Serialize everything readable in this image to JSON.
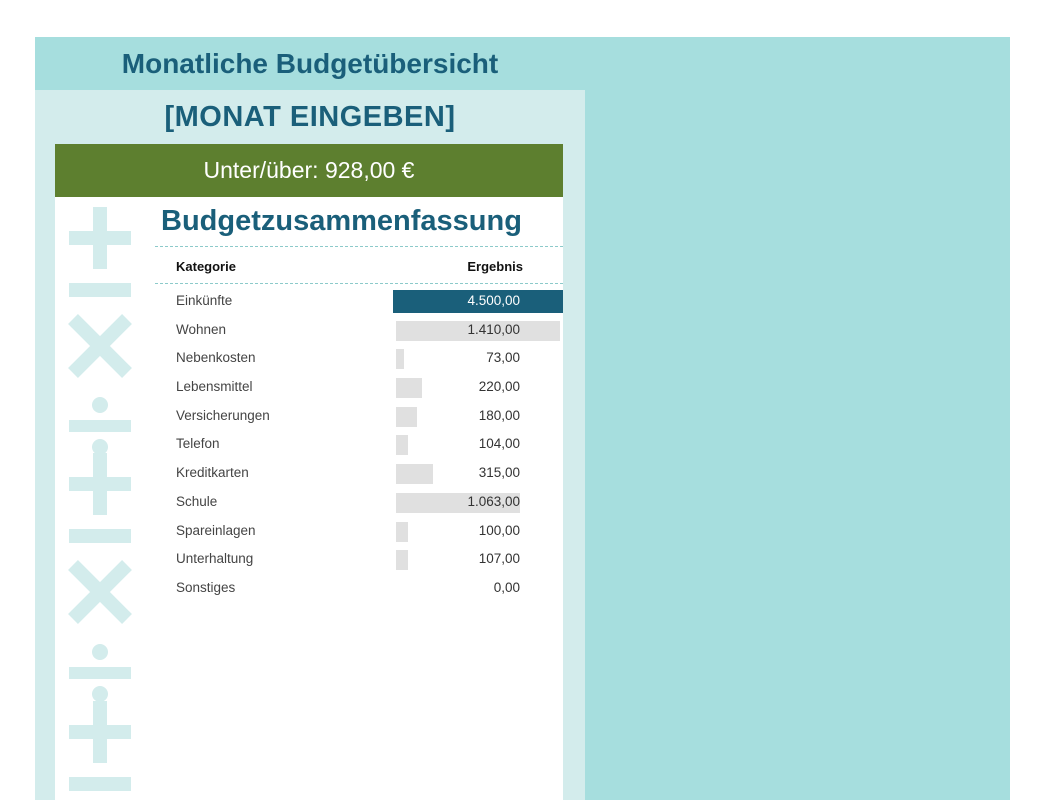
{
  "header": {
    "title": "Monatliche Budgetübersicht",
    "month": "[MONAT EINGEBEN]",
    "balance": "Unter/über: 928,00 €"
  },
  "summary": {
    "title": "Budgetzusammenfassung",
    "col_category": "Kategorie",
    "col_result": "Ergebnis",
    "rows": [
      {
        "label": "Einkünfte",
        "value": "4.500,00",
        "amount": 4500
      },
      {
        "label": "Wohnen",
        "value": "1.410,00",
        "amount": 1410
      },
      {
        "label": "Nebenkosten",
        "value": "73,00",
        "amount": 73
      },
      {
        "label": "Lebensmittel",
        "value": "220,00",
        "amount": 220
      },
      {
        "label": "Versicherungen",
        "value": "180,00",
        "amount": 180
      },
      {
        "label": "Telefon",
        "value": "104,00",
        "amount": 104
      },
      {
        "label": "Kreditkarten",
        "value": "315,00",
        "amount": 315
      },
      {
        "label": "Schule",
        "value": "1.063,00",
        "amount": 1063
      },
      {
        "label": "Spareinlagen",
        "value": "100,00",
        "amount": 100
      },
      {
        "label": "Unterhaltung",
        "value": "107,00",
        "amount": 107
      },
      {
        "label": "Sonstiges",
        "value": "0,00",
        "amount": 0
      }
    ]
  },
  "colors": {
    "page_bg": "#a6dede",
    "panel_bg": "#d3ecec",
    "title_text": "#1a5f7a",
    "balance_bar": "#5d7f2f",
    "income_highlight": "#1a5f7a",
    "expense_bar": "#e0e0e0"
  },
  "decor": {
    "symbols_icon": "math-symbols-icon"
  }
}
